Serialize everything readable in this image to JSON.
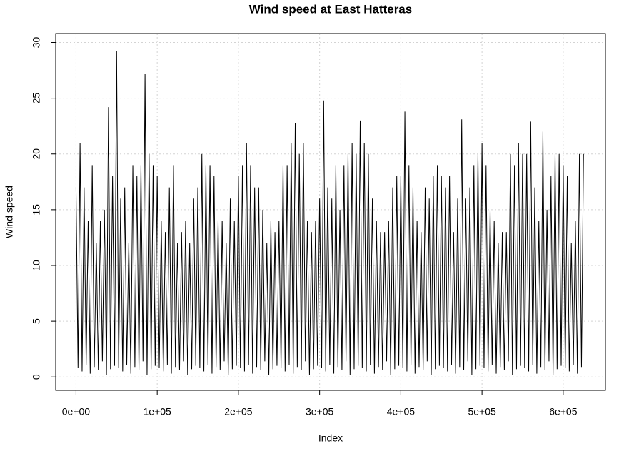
{
  "chart_data": {
    "type": "line",
    "title": "Wind speed at East Hatteras",
    "x_label": "Index",
    "y_label": "Wind speed",
    "color": "#000000",
    "grid": true,
    "xlim": [
      -25000,
      652000
    ],
    "ylim": [
      -1.2,
      30.8
    ],
    "xticks": [
      {
        "value": 0,
        "label": "0e+00"
      },
      {
        "value": 100000,
        "label": "1e+05"
      },
      {
        "value": 200000,
        "label": "2e+05"
      },
      {
        "value": 300000,
        "label": "3e+05"
      },
      {
        "value": 400000,
        "label": "4e+05"
      },
      {
        "value": 500000,
        "label": "5e+05"
      },
      {
        "value": 600000,
        "label": "6e+05"
      }
    ],
    "yticks": [
      0,
      5,
      10,
      15,
      20,
      25,
      30
    ],
    "x": [
      0,
      2500,
      5000,
      7500,
      10000,
      12500,
      15000,
      17500,
      20000,
      22500,
      25000,
      27500,
      30000,
      32500,
      35000,
      37500,
      40000,
      42500,
      45000,
      47500,
      50000,
      52500,
      55000,
      57500,
      60000,
      62500,
      65000,
      67500,
      70000,
      72500,
      75000,
      77500,
      80000,
      82500,
      85000,
      87500,
      90000,
      92500,
      95000,
      97500,
      100000,
      102500,
      105000,
      107500,
      110000,
      112500,
      115000,
      117500,
      120000,
      122500,
      125000,
      127500,
      130000,
      132500,
      135000,
      137500,
      140000,
      142500,
      145000,
      147500,
      150000,
      152500,
      155000,
      157500,
      160000,
      162500,
      165000,
      167500,
      170000,
      172500,
      175000,
      177500,
      180000,
      182500,
      185000,
      187500,
      190000,
      192500,
      195000,
      197500,
      200000,
      202500,
      205000,
      207500,
      210000,
      212500,
      215000,
      217500,
      220000,
      222500,
      225000,
      227500,
      230000,
      232500,
      235000,
      237500,
      240000,
      242500,
      245000,
      247500,
      250000,
      252500,
      255000,
      257500,
      260000,
      262500,
      265000,
      267500,
      270000,
      272500,
      275000,
      277500,
      280000,
      282500,
      285000,
      287500,
      290000,
      292500,
      295000,
      297500,
      300000,
      302500,
      305000,
      307500,
      310000,
      312500,
      315000,
      317500,
      320000,
      322500,
      325000,
      327500,
      330000,
      332500,
      335000,
      337500,
      340000,
      342500,
      345000,
      347500,
      350000,
      352500,
      355000,
      357500,
      360000,
      362500,
      365000,
      367500,
      370000,
      372500,
      375000,
      377500,
      380000,
      382500,
      385000,
      387500,
      390000,
      392500,
      395000,
      397500,
      400000,
      402500,
      405000,
      407500,
      410000,
      412500,
      415000,
      417500,
      420000,
      422500,
      425000,
      427500,
      430000,
      432500,
      435000,
      437500,
      440000,
      442500,
      445000,
      447500,
      450000,
      452500,
      455000,
      457500,
      460000,
      462500,
      465000,
      467500,
      470000,
      472500,
      475000,
      477500,
      480000,
      482500,
      485000,
      487500,
      490000,
      492500,
      495000,
      497500,
      500000,
      502500,
      505000,
      507500,
      510000,
      512500,
      515000,
      517500,
      520000,
      522500,
      525000,
      527500,
      530000,
      532500,
      535000,
      537500,
      540000,
      542500,
      545000,
      547500,
      550000,
      552500,
      555000,
      557500,
      560000,
      562500,
      565000,
      567500,
      570000,
      572500,
      575000,
      577500,
      580000,
      582500,
      585000,
      587500,
      590000,
      592500,
      595000,
      597500,
      600000,
      602500,
      605000,
      607500,
      610000,
      612500,
      615000,
      617500,
      620000,
      622500,
      625000
    ],
    "values": [
      17,
      0.8,
      21,
      0.5,
      17,
      1.1,
      14,
      0.3,
      19,
      0.9,
      12,
      0.6,
      14,
      1.4,
      15,
      0.2,
      24.2,
      0.7,
      18,
      1.0,
      29.2,
      0.8,
      16,
      0.5,
      17,
      1.1,
      12,
      0.3,
      19,
      0.9,
      18,
      0.6,
      19,
      1.4,
      27.2,
      0.2,
      20,
      0.7,
      19,
      1.0,
      18,
      0.8,
      14,
      0.5,
      13,
      1.1,
      17,
      0.3,
      19,
      0.9,
      12,
      0.6,
      13,
      1.4,
      14,
      0.2,
      12,
      0.7,
      16,
      1.0,
      17,
      0.8,
      20,
      0.5,
      19,
      1.1,
      19,
      0.3,
      18,
      0.9,
      14,
      0.6,
      14,
      1.4,
      12,
      0.2,
      16,
      0.7,
      14,
      1.0,
      18,
      0.8,
      19,
      0.5,
      21,
      1.1,
      19,
      0.3,
      17,
      0.9,
      17,
      0.6,
      15,
      1.4,
      12,
      0.2,
      14,
      0.7,
      13,
      1.0,
      14,
      0.8,
      19,
      0.5,
      19,
      1.1,
      21,
      0.3,
      22.8,
      0.9,
      20,
      0.6,
      21,
      1.4,
      14,
      0.2,
      13,
      0.7,
      14,
      1.0,
      16,
      0.8,
      24.8,
      0.5,
      17,
      1.1,
      16,
      0.3,
      19,
      0.9,
      15,
      0.6,
      19,
      1.4,
      20,
      0.2,
      21,
      0.7,
      20,
      1.0,
      23,
      0.8,
      21,
      0.5,
      20,
      1.1,
      16,
      0.3,
      14,
      0.9,
      13,
      0.6,
      13,
      1.4,
      14,
      0.2,
      17,
      0.7,
      18,
      1.0,
      18,
      0.8,
      23.8,
      0.5,
      19,
      1.1,
      17,
      0.3,
      14,
      0.9,
      13,
      0.6,
      17,
      1.4,
      16,
      0.2,
      18,
      0.7,
      19,
      1.0,
      18,
      0.8,
      17,
      0.5,
      18,
      1.1,
      13,
      0.3,
      16,
      0.9,
      23.1,
      0.6,
      16,
      1.4,
      17,
      0.2,
      19,
      0.7,
      20,
      1.0,
      21,
      0.8,
      19,
      0.5,
      15,
      1.1,
      14,
      0.3,
      12,
      0.9,
      13,
      0.6,
      13,
      1.4,
      20,
      0.2,
      19,
      0.7,
      21,
      1.0,
      20,
      0.8,
      20,
      0.5,
      22.9,
      1.1,
      17,
      0.3,
      14,
      0.9,
      22,
      0.6,
      15,
      1.4,
      18,
      0.2,
      20,
      0.7,
      20,
      1.0,
      19,
      0.8,
      18,
      0.5,
      12,
      1.1,
      14,
      0.3,
      20,
      0.9,
      20
    ]
  }
}
